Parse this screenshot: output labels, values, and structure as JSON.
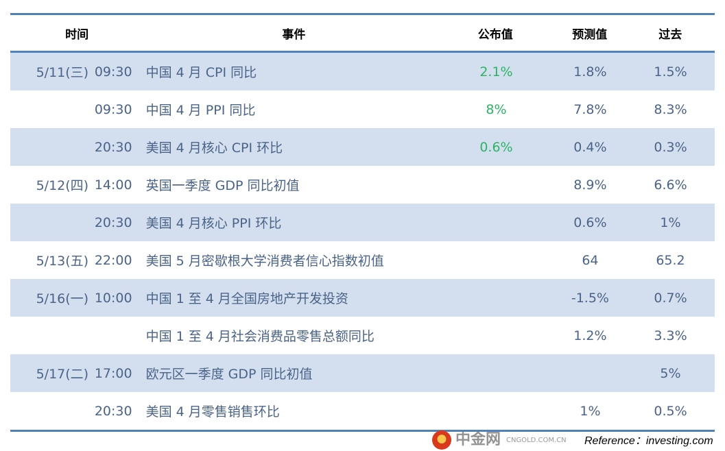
{
  "header": {
    "time": "时间",
    "event": "事件",
    "published": "公布值",
    "forecast": "预测值",
    "previous": "过去"
  },
  "rows": [
    {
      "date": "5/11(三)",
      "time": "09:30",
      "event": "中国 4 月 CPI 同比",
      "published": "2.1%",
      "forecast": "1.8%",
      "previous": "1.5%"
    },
    {
      "date": "",
      "time": "09:30",
      "event": "中国 4 月 PPI 同比",
      "published": "8%",
      "forecast": "7.8%",
      "previous": "8.3%"
    },
    {
      "date": "",
      "time": "20:30",
      "event": "美国 4 月核心 CPI 环比",
      "published": "0.6%",
      "forecast": "0.4%",
      "previous": "0.3%"
    },
    {
      "date": "5/12(四)",
      "time": "14:00",
      "event": "英国一季度 GDP 同比初值",
      "published": "",
      "forecast": "8.9%",
      "previous": "6.6%"
    },
    {
      "date": "",
      "time": "20:30",
      "event": "美国 4 月核心 PPI 环比",
      "published": "",
      "forecast": "0.6%",
      "previous": "1%"
    },
    {
      "date": "5/13(五)",
      "time": "22:00",
      "event": "美国 5 月密歇根大学消费者信心指数初值",
      "published": "",
      "forecast": "64",
      "previous": "65.2"
    },
    {
      "date": "5/16(一)",
      "time": "10:00",
      "event": "中国 1 至 4 月全国房地产开发投资",
      "published": "",
      "forecast": "-1.5%",
      "previous": "0.7%"
    },
    {
      "date": "",
      "time": "",
      "event": "中国 1 至 4 月社会消费品零售总额同比",
      "published": "",
      "forecast": "1.2%",
      "previous": "3.3%"
    },
    {
      "date": "5/17(二)",
      "time": "17:00",
      "event": "欧元区一季度 GDP 同比初值",
      "published": "",
      "forecast": "",
      "previous": "5%"
    },
    {
      "date": "",
      "time": "20:30",
      "event": "美国 4 月零售销售环比",
      "published": "",
      "forecast": "1%",
      "previous": "0.5%"
    }
  ],
  "footer": {
    "reference": "Reference：investing.com",
    "watermark": "中金网",
    "watermark_sub": "CNGOLD.COM.CN"
  },
  "colors": {
    "accent": "#4f81bd",
    "row_alt": "#d3dfef",
    "published_green": "#2bb363"
  }
}
